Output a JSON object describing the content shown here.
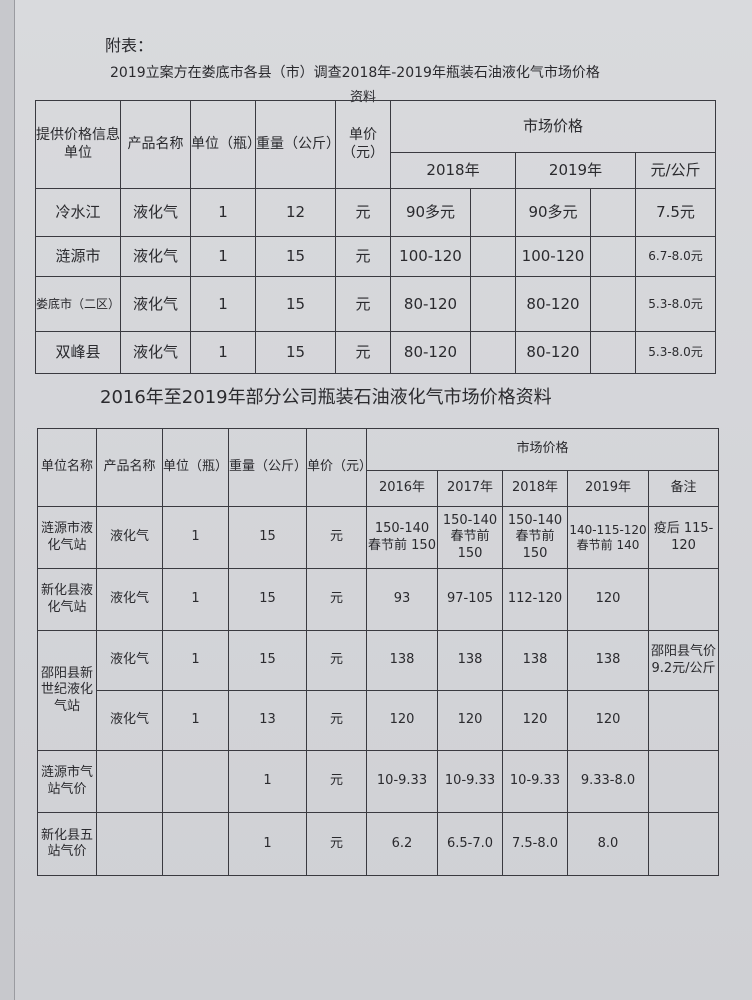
{
  "appendix_label": "附表：",
  "table1": {
    "title_line1": "2019立案方在娄底市各县（市）调查2018年-2019年瓶装石油液化气市场价格",
    "title_line2": "资料",
    "headers": {
      "org": "提供价格信息单位",
      "product": "产品名称",
      "unit": "单位（瓶）",
      "weight": "重量（公斤）",
      "price_unit": "单价（元）",
      "market": "市场价格",
      "y2018": "2018年",
      "y2019": "2019年",
      "per_kg": "元/公斤"
    },
    "rows": [
      {
        "org": "冷水江",
        "product": "液化气",
        "unit": "1",
        "weight": "12",
        "price_unit": "元",
        "y2018": "90多元",
        "y2019": "90多元",
        "per_kg": "7.5元"
      },
      {
        "org": "涟源市",
        "product": "液化气",
        "unit": "1",
        "weight": "15",
        "price_unit": "元",
        "y2018": "100-120",
        "y2019": "100-120",
        "per_kg": "6.7-8.0元"
      },
      {
        "org": "娄底市（二区）",
        "product": "液化气",
        "unit": "1",
        "weight": "15",
        "price_unit": "元",
        "y2018": "80-120",
        "y2019": "80-120",
        "per_kg": "5.3-8.0元"
      },
      {
        "org": "双峰县",
        "product": "液化气",
        "unit": "1",
        "weight": "15",
        "price_unit": "元",
        "y2018": "80-120",
        "y2019": "80-120",
        "per_kg": "5.3-8.0元"
      }
    ]
  },
  "table2": {
    "title": "2016年至2019年部分公司瓶装石油液化气市场价格资料",
    "headers": {
      "org": "单位名称",
      "product": "产品名称",
      "unit": "单位（瓶）",
      "weight": "重量（公斤）",
      "price_unit": "单价（元）",
      "market": "市场价格",
      "y2016": "2016年",
      "y2017": "2017年",
      "y2018": "2018年",
      "y2019": "2019年",
      "note": "备注"
    },
    "rows": [
      {
        "org": "涟源市液化气站",
        "product": "液化气",
        "unit": "1",
        "weight": "15",
        "price_unit": "元",
        "y2016": "150-140 春节前 150",
        "y2017": "150-140 春节前 150",
        "y2018": "150-140 春节前 150",
        "y2019": "140-115-120 春节前 140",
        "note": "疫后 115-120"
      },
      {
        "org": "新化县液化气站",
        "product": "液化气",
        "unit": "1",
        "weight": "15",
        "price_unit": "元",
        "y2016": "93",
        "y2017": "97-105",
        "y2018": "112-120",
        "y2019": "120",
        "note": ""
      },
      {
        "org": "邵阳县新世纪液化气站",
        "product": "液化气",
        "unit": "1",
        "weight": "15",
        "price_unit": "元",
        "y2016": "138",
        "y2017": "138",
        "y2018": "138",
        "y2019": "138",
        "note": "邵阳县气价9.2元/公斤"
      },
      {
        "org": "",
        "product": "液化气",
        "unit": "1",
        "weight": "13",
        "price_unit": "元",
        "y2016": "120",
        "y2017": "120",
        "y2018": "120",
        "y2019": "120",
        "note": ""
      },
      {
        "org": "涟源市气站气价",
        "product": "",
        "unit": "",
        "weight": "1",
        "price_unit": "元",
        "y2016": "10-9.33",
        "y2017": "10-9.33",
        "y2018": "10-9.33",
        "y2019": "9.33-8.0",
        "note": ""
      },
      {
        "org": "新化县五站气价",
        "product": "",
        "unit": "",
        "weight": "1",
        "price_unit": "元",
        "y2016": "6.2",
        "y2017": "6.5-7.0",
        "y2018": "7.5-8.0",
        "y2019": "8.0",
        "note": ""
      }
    ]
  }
}
